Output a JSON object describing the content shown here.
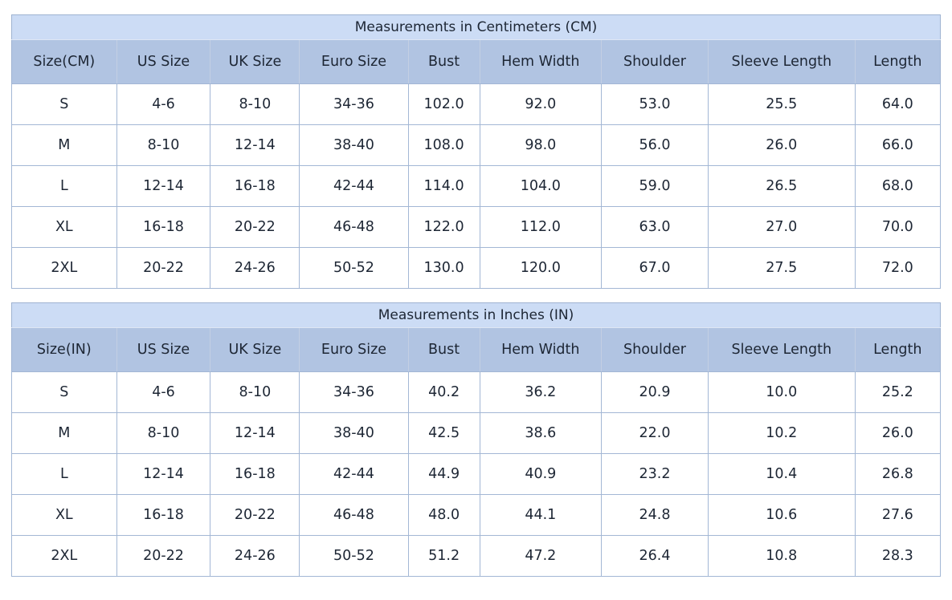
{
  "colors": {
    "title_row_bg": "#ccdcf5",
    "header_row_bg": "#b1c4e2",
    "data_row_bg": "#ffffff",
    "grid_border": "#a3b7d5",
    "outer_border": "#9fb3d1",
    "text": "#1d2634"
  },
  "tables": [
    {
      "title": "Measurements in Centimeters (CM)",
      "columns": [
        "Size(CM)",
        "US Size",
        "UK Size",
        "Euro Size",
        "Bust",
        "Hem Width",
        "Shoulder",
        "Sleeve Length",
        "Length"
      ],
      "rows": [
        [
          "S",
          "4-6",
          "8-10",
          "34-36",
          "102.0",
          "92.0",
          "53.0",
          "25.5",
          "64.0"
        ],
        [
          "M",
          "8-10",
          "12-14",
          "38-40",
          "108.0",
          "98.0",
          "56.0",
          "26.0",
          "66.0"
        ],
        [
          "L",
          "12-14",
          "16-18",
          "42-44",
          "114.0",
          "104.0",
          "59.0",
          "26.5",
          "68.0"
        ],
        [
          "XL",
          "16-18",
          "20-22",
          "46-48",
          "122.0",
          "112.0",
          "63.0",
          "27.0",
          "70.0"
        ],
        [
          "2XL",
          "20-22",
          "24-26",
          "50-52",
          "130.0",
          "120.0",
          "67.0",
          "27.5",
          "72.0"
        ]
      ]
    },
    {
      "title": "Measurements in Inches (IN)",
      "columns": [
        "Size(IN)",
        "US Size",
        "UK Size",
        "Euro Size",
        "Bust",
        "Hem Width",
        "Shoulder",
        "Sleeve Length",
        "Length"
      ],
      "rows": [
        [
          "S",
          "4-6",
          "8-10",
          "34-36",
          "40.2",
          "36.2",
          "20.9",
          "10.0",
          "25.2"
        ],
        [
          "M",
          "8-10",
          "12-14",
          "38-40",
          "42.5",
          "38.6",
          "22.0",
          "10.2",
          "26.0"
        ],
        [
          "L",
          "12-14",
          "16-18",
          "42-44",
          "44.9",
          "40.9",
          "23.2",
          "10.4",
          "26.8"
        ],
        [
          "XL",
          "16-18",
          "20-22",
          "46-48",
          "48.0",
          "44.1",
          "24.8",
          "10.6",
          "27.6"
        ],
        [
          "2XL",
          "20-22",
          "24-26",
          "50-52",
          "51.2",
          "47.2",
          "26.4",
          "10.8",
          "28.3"
        ]
      ]
    }
  ]
}
